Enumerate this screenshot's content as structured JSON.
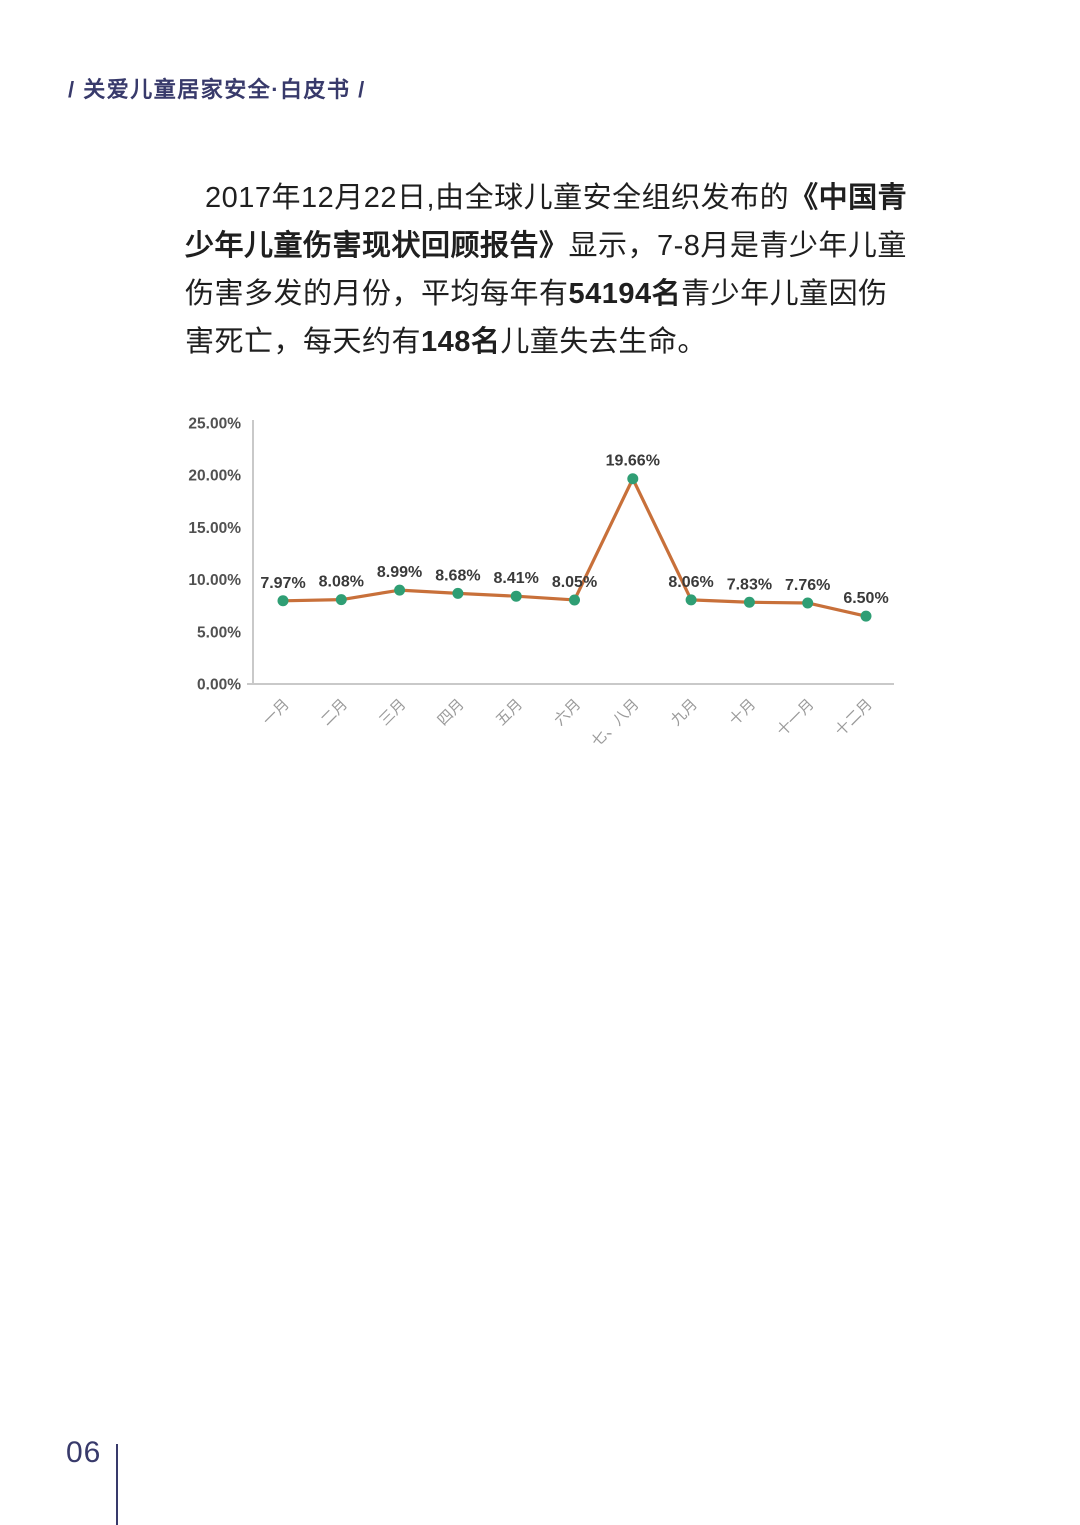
{
  "page": {
    "header": "/ 关爱儿童居家安全·白皮书 /",
    "page_number": "06",
    "accent_color": "#383a6b"
  },
  "intro": {
    "lines": [
      [
        {
          "t": "2017年12月22日,由全球儿童安全组织发布的",
          "b": false
        },
        {
          "t": "《中国青",
          "b": true
        }
      ],
      [
        {
          "t": "少年儿童伤害现状回顾报告》",
          "b": true
        },
        {
          "t": "显示，7-8月是青少年儿童",
          "b": false
        }
      ],
      [
        {
          "t": "伤害多发的月份，平均每年有",
          "b": false
        },
        {
          "t": "54194名",
          "b": true
        },
        {
          "t": "青少年儿童因伤",
          "b": false
        }
      ],
      [
        {
          "t": "害死亡，每天约有",
          "b": false
        },
        {
          "t": "148名",
          "b": true
        },
        {
          "t": "儿童失去生命。",
          "b": false
        }
      ]
    ]
  },
  "chart_data": {
    "type": "line",
    "categories": [
      "一月",
      "二月",
      "三月",
      "四月",
      "五月",
      "六月",
      "七、八月",
      "九月",
      "十月",
      "十一月",
      "十二月"
    ],
    "values": [
      7.97,
      8.08,
      8.99,
      8.68,
      8.41,
      8.05,
      19.66,
      8.06,
      7.83,
      7.76,
      6.5
    ],
    "point_labels": [
      "7.97%",
      "8.08%",
      "8.99%",
      "8.68%",
      "8.41%",
      "8.05%",
      "19.66%",
      "8.06%",
      "7.83%",
      "7.76%",
      "6.50%"
    ],
    "y_ticks": [
      "25.00%",
      "20.00%",
      "15.00%",
      "10.00%",
      "5.00%",
      "0.00%"
    ],
    "ylim": [
      0,
      25
    ],
    "title": "",
    "xlabel": "",
    "ylabel": "",
    "grid": false,
    "legend": "none",
    "line_color": "#c8703a",
    "marker_color": "#2f9e74",
    "axis_color": "#c9c9c9",
    "tick_label_color": "#515151",
    "point_label_color": "#3a3a3a",
    "x_label_color": "#9a9a9a"
  }
}
